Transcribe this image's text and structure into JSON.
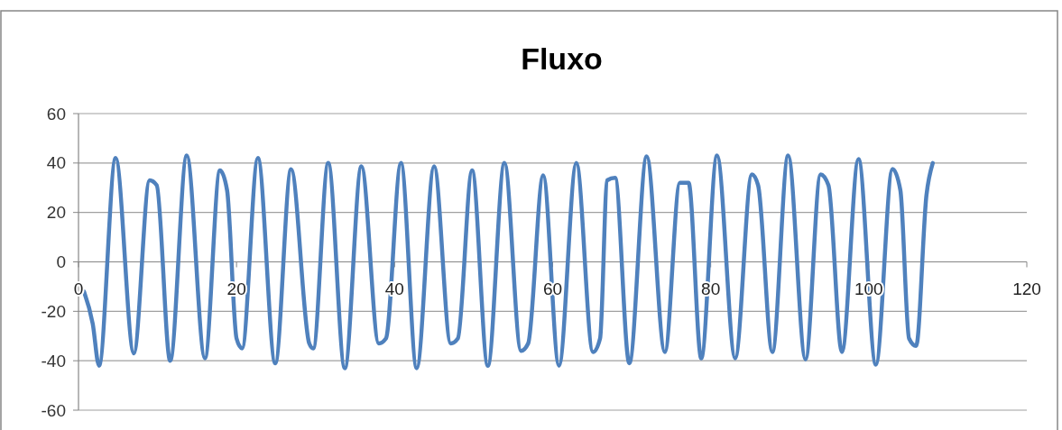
{
  "chart_data": {
    "type": "line",
    "title": "Fluxo",
    "x": [
      0.7,
      1.8,
      2.6,
      4.7,
      7.0,
      9.0,
      9.9,
      11.6,
      13.7,
      16.0,
      17.9,
      18.8,
      20.0,
      20.7,
      22.7,
      24.9,
      26.9,
      29.2,
      29.7,
      31.6,
      33.7,
      35.8,
      38.0,
      38.9,
      40.8,
      42.8,
      45.0,
      47.1,
      48.0,
      49.8,
      51.8,
      53.9,
      56.0,
      56.9,
      58.8,
      60.8,
      63.0,
      65.1,
      66.0,
      66.9,
      67.9,
      69.7,
      71.9,
      74.2,
      76.1,
      77.2,
      78.8,
      80.8,
      83.1,
      85.2,
      86.0,
      87.8,
      89.8,
      92.0,
      93.9,
      94.9,
      96.6,
      98.7,
      100.9,
      103.0,
      104.0,
      105.1,
      106.0,
      107.3,
      108.1
    ],
    "series": [
      {
        "color": "#4f81bd",
        "values": [
          -12,
          -25,
          -42,
          42,
          -37,
          33,
          31,
          -40,
          43,
          -39,
          37,
          29,
          -31,
          -35,
          42,
          -41,
          37.5,
          -33,
          -35,
          40,
          -43,
          38.7,
          -33,
          -31,
          40,
          -43,
          38.7,
          -33,
          -31,
          37,
          -42,
          40,
          -36,
          -33,
          35,
          -42,
          40,
          -36.5,
          -31,
          33,
          34,
          -41,
          42.7,
          -36.5,
          32,
          32,
          -39,
          43,
          -39,
          35.4,
          31,
          -36.5,
          43,
          -39.5,
          35.4,
          31,
          -36.5,
          41.6,
          -41.6,
          37.6,
          29,
          -31,
          -34,
          27,
          40
        ]
      }
    ],
    "xlim": [
      0,
      120
    ],
    "xticks": [
      0,
      20,
      40,
      60,
      80,
      100,
      120
    ],
    "ylim": [
      -60,
      60
    ],
    "yticks": [
      -60,
      -40,
      -20,
      0,
      20,
      40,
      60
    ],
    "grid": "y",
    "marker": "none",
    "line_style": "solid"
  }
}
